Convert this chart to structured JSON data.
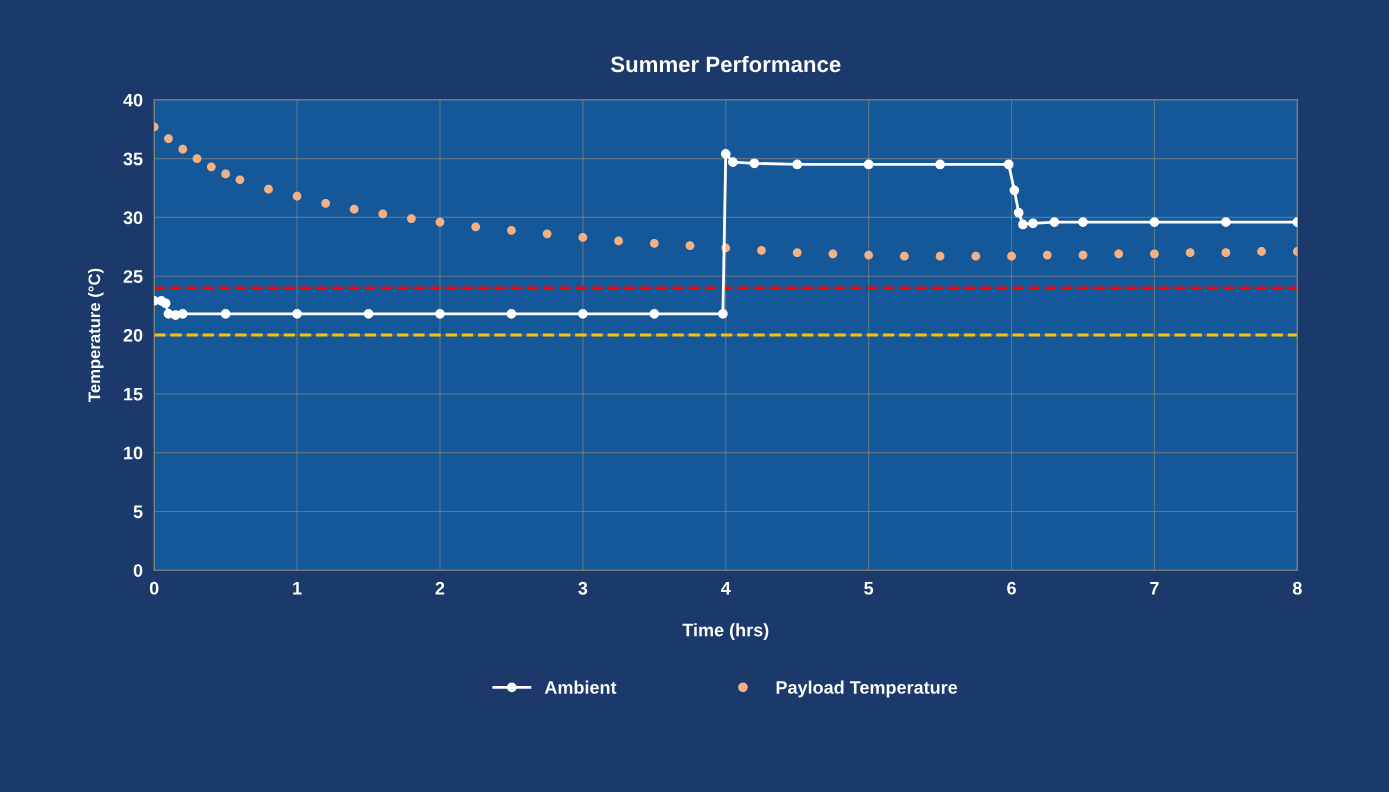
{
  "chart_data": {
    "type": "line",
    "title": "Summer Performance",
    "xlabel": "Time (hrs)",
    "ylabel": "Temperature (°C)",
    "xlim": [
      0,
      8
    ],
    "xticks": [
      0,
      1,
      2,
      3,
      4,
      5,
      6,
      7,
      8
    ],
    "ylim": [
      0,
      40
    ],
    "yticks": [
      0,
      5,
      10,
      15,
      20,
      25,
      30,
      35,
      40
    ],
    "grid": true,
    "legend": "bottom",
    "marker": "circle",
    "line_style": "solid",
    "series": [
      {
        "name": "Ambient",
        "color": "#ffffff",
        "x": [
          0,
          0.05,
          0.08,
          0.1,
          0.15,
          0.2,
          0.5,
          1,
          1.5,
          2,
          2.5,
          3,
          3.5,
          3.98,
          4.0,
          4.05,
          4.2,
          4.5,
          5,
          5.5,
          5.98,
          6.02,
          6.05,
          6.08,
          6.15,
          6.3,
          6.5,
          7,
          7.5,
          8
        ],
        "values": [
          22.9,
          22.9,
          22.7,
          21.8,
          21.7,
          21.8,
          21.8,
          21.8,
          21.8,
          21.8,
          21.8,
          21.8,
          21.8,
          21.8,
          35.4,
          34.7,
          34.6,
          34.5,
          34.5,
          34.5,
          34.5,
          32.3,
          30.4,
          29.4,
          29.5,
          29.6,
          29.6,
          29.6,
          29.6,
          29.6
        ]
      },
      {
        "name": "Payload Temperature",
        "type": "scatter",
        "color": "#f4b183",
        "x": [
          0,
          0.1,
          0.2,
          0.3,
          0.4,
          0.5,
          0.6,
          0.8,
          1,
          1.2,
          1.4,
          1.6,
          1.8,
          2,
          2.25,
          2.5,
          2.75,
          3,
          3.25,
          3.5,
          3.75,
          4,
          4.25,
          4.5,
          4.75,
          5,
          5.25,
          5.5,
          5.75,
          6,
          6.25,
          6.5,
          6.75,
          7,
          7.25,
          7.5,
          7.75,
          8
        ],
        "values": [
          37.7,
          36.7,
          35.8,
          35.0,
          34.3,
          33.7,
          33.2,
          32.4,
          31.8,
          31.2,
          30.7,
          30.3,
          29.9,
          29.6,
          29.2,
          28.9,
          28.6,
          28.3,
          28.0,
          27.8,
          27.6,
          27.4,
          27.2,
          27.0,
          26.9,
          26.8,
          26.7,
          26.7,
          26.7,
          26.7,
          26.8,
          26.8,
          26.9,
          26.9,
          27.0,
          27.0,
          27.1,
          27.1
        ]
      }
    ],
    "ref_lines": [
      {
        "axis": "y",
        "value": 24,
        "color": "#ff0000",
        "line_style": "dashed"
      },
      {
        "axis": "y",
        "value": 20,
        "color": "#ffc000",
        "line_style": "dashed"
      }
    ]
  }
}
